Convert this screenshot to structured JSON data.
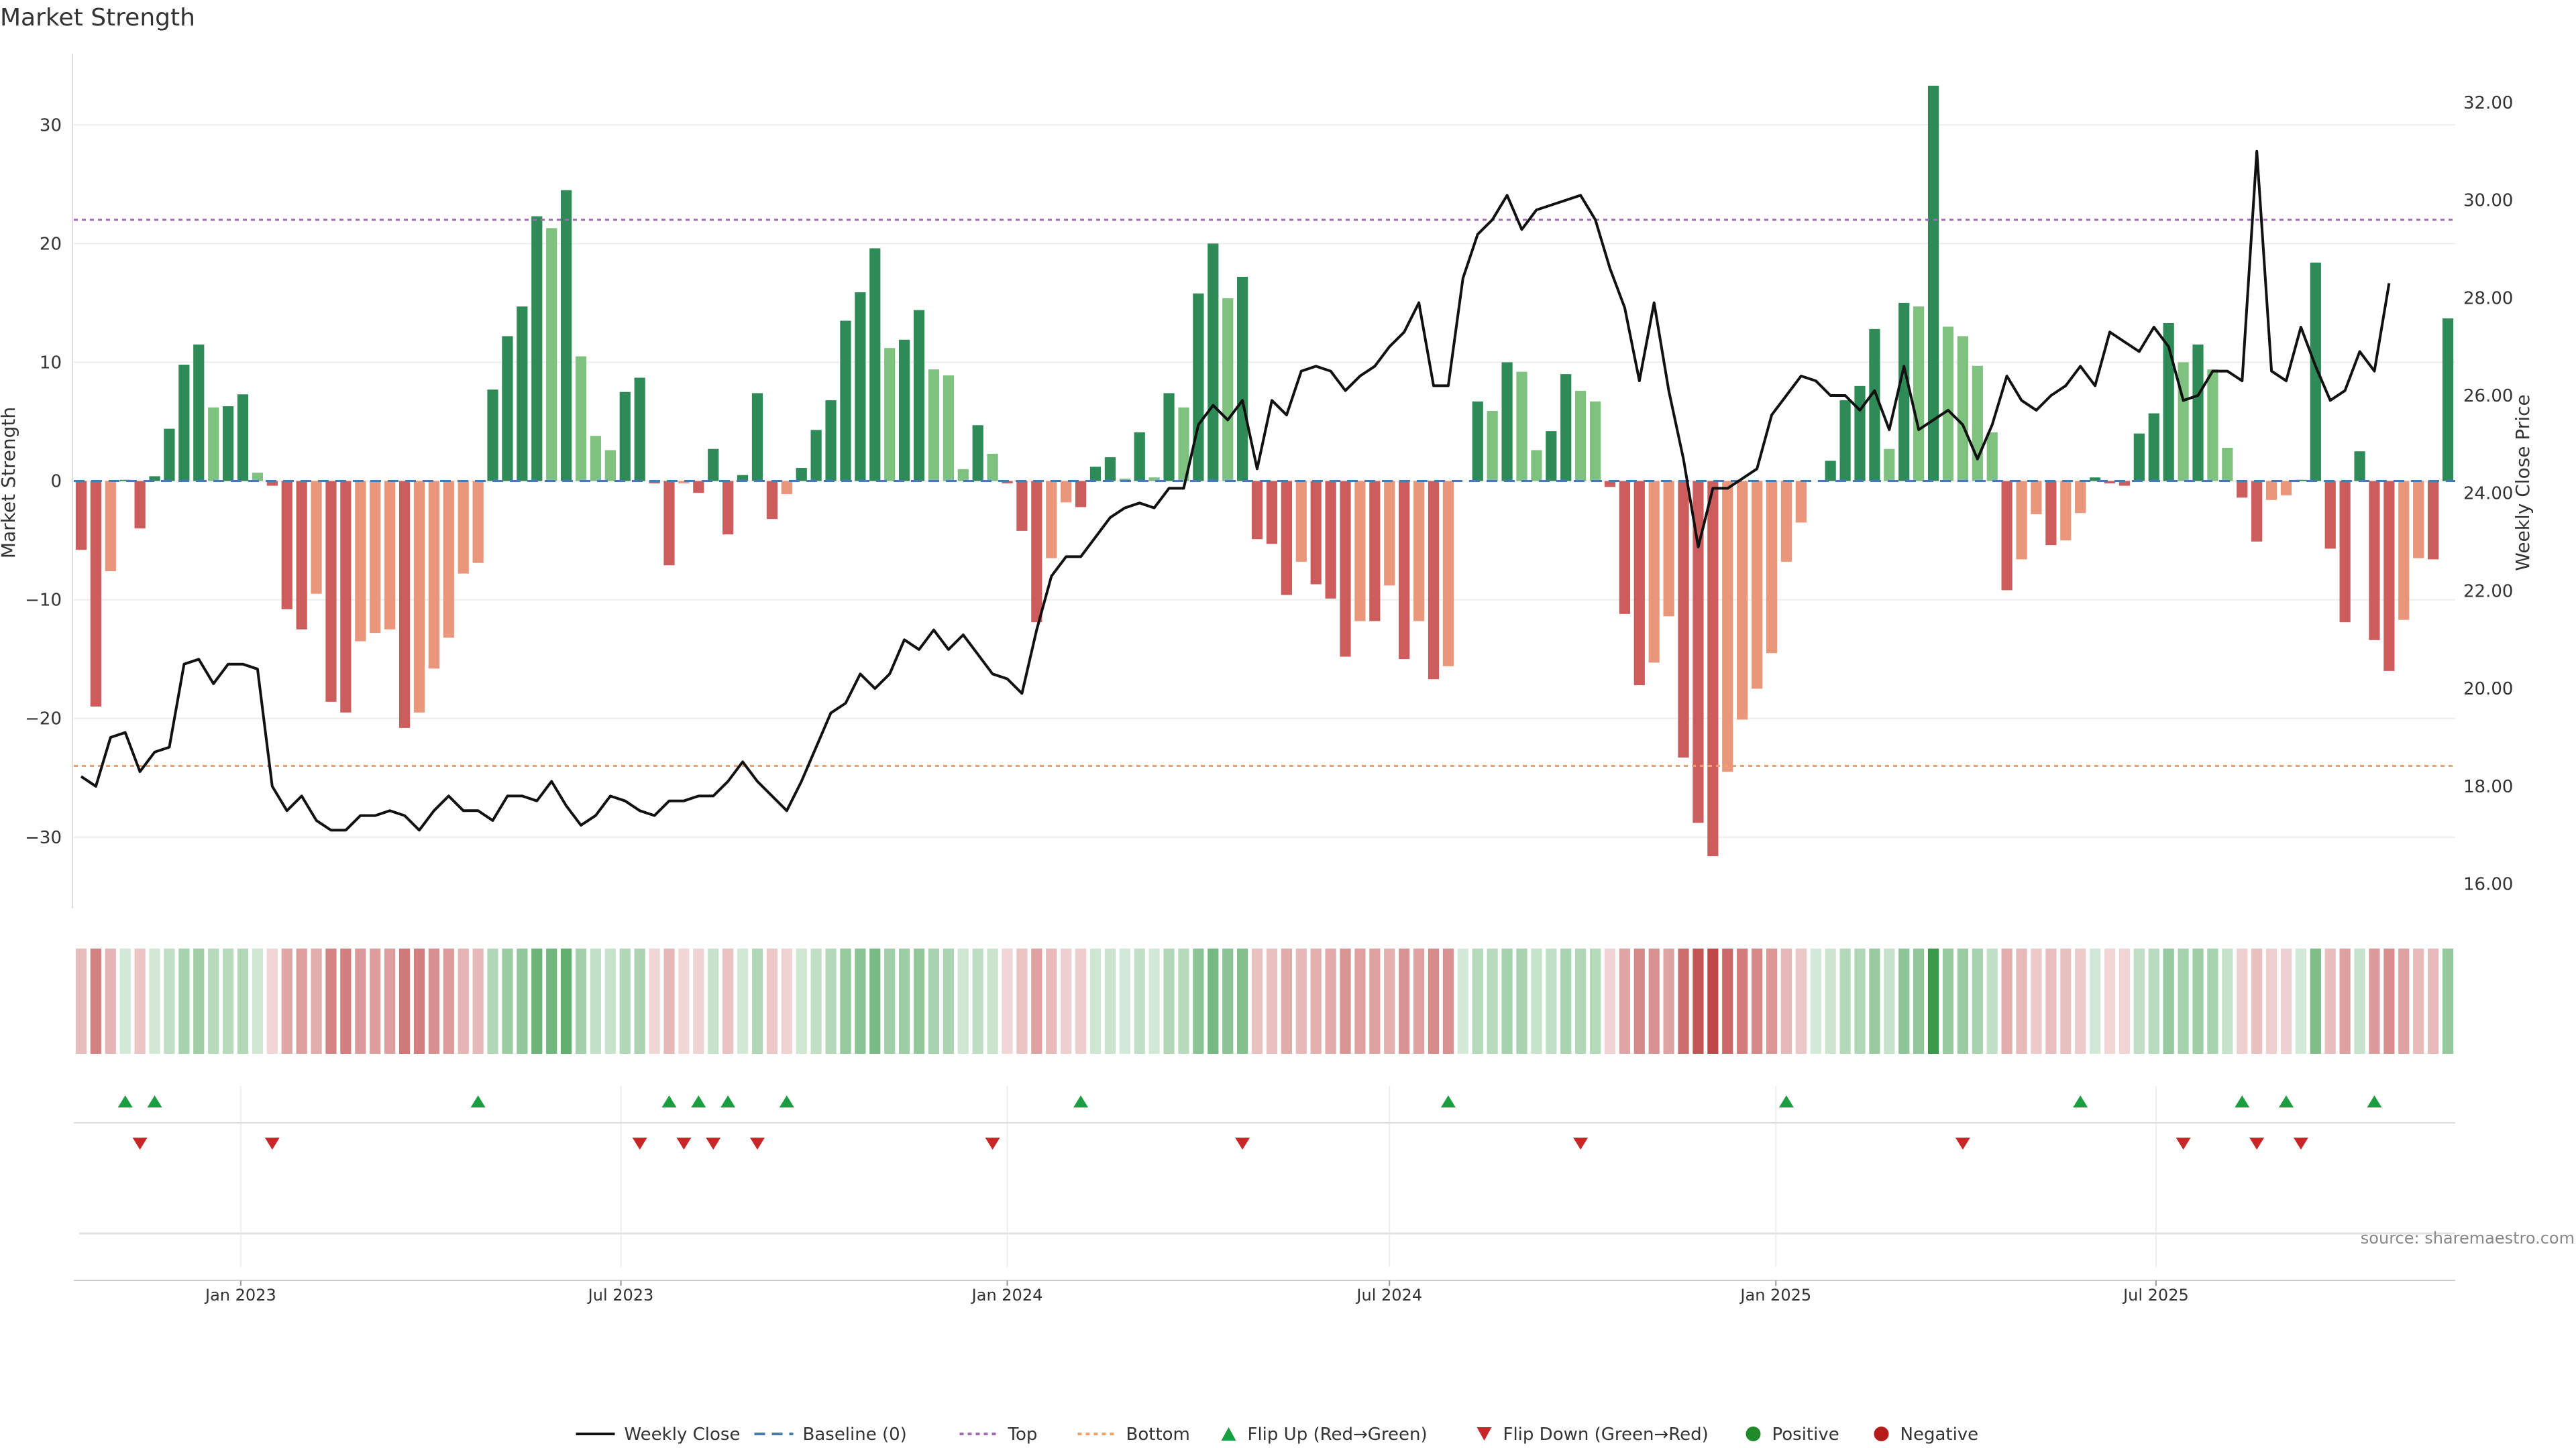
{
  "chart_data": {
    "type": "bar",
    "title": "Market Strength",
    "ylabel": "Market Strength",
    "y2label": "Weekly Close Price",
    "ylim": [
      -36,
      36
    ],
    "y2lim": [
      15.5,
      33
    ],
    "yticks": [
      30,
      20,
      10,
      0,
      -10,
      -20,
      -30
    ],
    "ytick_labels": [
      "30",
      "20",
      "10",
      "0",
      "−10",
      "−20",
      "−30"
    ],
    "y2ticks": [
      32,
      30,
      28,
      26,
      24,
      22,
      20,
      18,
      16
    ],
    "y2tick_labels": [
      "32.00",
      "30.00",
      "28.00",
      "26.00",
      "24.00",
      "22.00",
      "20.00",
      "18.00",
      "16.00"
    ],
    "x_start": "2022-10-17",
    "x_step_days": 7,
    "xticks": [
      {
        "date": "2023-01-01",
        "label": "Jan 2023"
      },
      {
        "date": "2023-07-01",
        "label": "Jul 2023"
      },
      {
        "date": "2024-01-01",
        "label": "Jan 2024"
      },
      {
        "date": "2024-07-01",
        "label": "Jul 2024"
      },
      {
        "date": "2025-01-01",
        "label": "Jan 2025"
      },
      {
        "date": "2025-07-01",
        "label": "Jul 2025"
      }
    ],
    "strength": [
      -5.8,
      -19,
      -7.6,
      0.1,
      -4,
      0.4,
      4.4,
      9.8,
      11.5,
      6.2,
      6.3,
      7.3,
      0.7,
      -0.4,
      -10.8,
      -12.5,
      -9.5,
      -18.6,
      -19.5,
      -13.5,
      -12.8,
      -12.5,
      -20.8,
      -19.5,
      -15.8,
      -13.2,
      -7.8,
      -6.9,
      7.7,
      12.2,
      14.7,
      22.3,
      21.3,
      24.5,
      10.5,
      3.8,
      2.6,
      7.5,
      8.7,
      -0.2,
      -7.1,
      -0.2,
      -1,
      2.7,
      -4.5,
      0.5,
      7.4,
      -3.2,
      -1.1,
      1.1,
      4.3,
      6.8,
      13.5,
      15.9,
      19.6,
      11.2,
      11.9,
      14.4,
      9.4,
      8.9,
      1,
      4.7,
      2.3,
      -0.2,
      -4.2,
      -11.9,
      -6.5,
      -1.8,
      -2.2,
      1.2,
      2,
      0.2,
      4.1,
      0.3,
      7.4,
      6.2,
      15.8,
      20,
      15.4,
      17.2,
      -4.9,
      -5.3,
      -9.6,
      -6.8,
      -8.7,
      -9.9,
      -14.8,
      -11.8,
      -11.8,
      -8.8,
      -15,
      -11.8,
      -16.7,
      -15.6,
      0,
      6.7,
      5.9,
      10,
      9.2,
      2.6,
      4.2,
      9,
      7.6,
      6.7,
      -0.5,
      -11.2,
      -17.2,
      -15.3,
      -11.4,
      -23.3,
      -28.8,
      -31.6,
      -24.5,
      -20.1,
      -17.5,
      -14.5,
      -6.8,
      -3.5,
      0,
      1.7,
      6.8,
      8,
      12.8,
      2.7,
      15,
      14.7,
      33.3,
      13,
      12.2,
      9.7,
      4.1,
      -9.2,
      -6.6,
      -2.8,
      -5.4,
      -5,
      -2.7,
      0.3,
      -0.2,
      -0.4,
      4,
      5.7,
      13.3,
      10,
      11.5,
      9.4,
      2.8,
      -1.4,
      -5.1,
      -1.6,
      -1.2,
      0.1,
      18.4,
      -5.7,
      -11.9,
      2.5,
      -13.4,
      -16,
      -11.7,
      -6.5,
      -6.6,
      13.7
    ],
    "price": [
      18.2,
      18,
      19,
      19.1,
      18.3,
      18.7,
      18.8,
      20.5,
      20.6,
      20.1,
      20.5,
      20.5,
      20.4,
      18,
      17.5,
      17.8,
      17.3,
      17.1,
      17.1,
      17.4,
      17.4,
      17.5,
      17.4,
      17.1,
      17.5,
      17.8,
      17.5,
      17.5,
      17.3,
      17.8,
      17.8,
      17.7,
      18.1,
      17.6,
      17.2,
      17.4,
      17.8,
      17.7,
      17.5,
      17.4,
      17.7,
      17.7,
      17.8,
      17.8,
      18.1,
      18.5,
      18.1,
      17.8,
      17.5,
      18.1,
      18.8,
      19.5,
      19.7,
      20.3,
      20.0,
      20.3,
      21.0,
      20.8,
      21.2,
      20.8,
      21.1,
      20.7,
      20.3,
      20.2,
      19.9,
      21.2,
      22.3,
      22.7,
      22.7,
      23.1,
      23.5,
      23.7,
      23.8,
      23.7,
      24.1,
      24.1,
      25.4,
      25.8,
      25.5,
      25.9,
      24.5,
      25.9,
      25.6,
      26.5,
      26.6,
      26.5,
      26.1,
      26.4,
      26.6,
      27.0,
      27.3,
      27.9,
      26.2,
      26.2,
      28.4,
      29.3,
      29.6,
      30.1,
      29.4,
      29.8,
      29.9,
      30.0,
      30.1,
      29.6,
      28.6,
      27.8,
      26.3,
      27.9,
      26.1,
      24.7,
      22.9,
      24.1,
      24.1,
      24.3,
      24.5,
      25.6,
      26.0,
      26.4,
      26.3,
      26.0,
      26.0,
      25.7,
      26.1,
      25.3,
      26.6,
      25.3,
      25.5,
      25.7,
      25.4,
      24.7,
      25.4,
      26.4,
      25.9,
      25.7,
      26.0,
      26.2,
      26.6,
      26.2,
      27.3,
      27.1,
      26.9,
      27.4,
      27.0,
      25.9,
      26.0,
      26.5,
      26.5,
      26.3,
      31.0,
      26.5,
      26.3,
      27.4,
      26.6,
      25.9,
      26.1,
      26.9,
      26.5,
      28.3
    ],
    "top_line": 22,
    "bottom_line": -24,
    "flip_up_index": [
      3,
      5,
      27,
      40,
      42,
      44,
      48,
      68,
      93,
      116,
      136,
      147,
      150,
      156
    ],
    "flip_down_index": [
      4,
      13,
      38,
      41,
      43,
      46,
      62,
      79,
      102,
      128,
      143,
      148,
      151
    ],
    "legend": [
      "Weekly Close",
      "Baseline (0)",
      "Top",
      "Bottom",
      "Flip Up (Red→Green)",
      "Flip Down (Green→Red)",
      "Positive",
      "Negative"
    ],
    "legend_placement": "bottom-center",
    "grid": true
  },
  "source_text": "source: sharemaestro.com",
  "colors": {
    "pos_strong": "#2e8b57",
    "pos_light": "#7fc17f",
    "neg_strong": "#cd5c5c",
    "neg_light": "#e9967a",
    "price_line": "#111111",
    "baseline": "#4a7bb0",
    "top": "#a06ab4",
    "bottom": "#f0a06a",
    "flip_up": "#1a9e3f",
    "flip_down": "#c62828",
    "positive_dot": "#1f8a2a",
    "negative_dot": "#b71c1c"
  }
}
